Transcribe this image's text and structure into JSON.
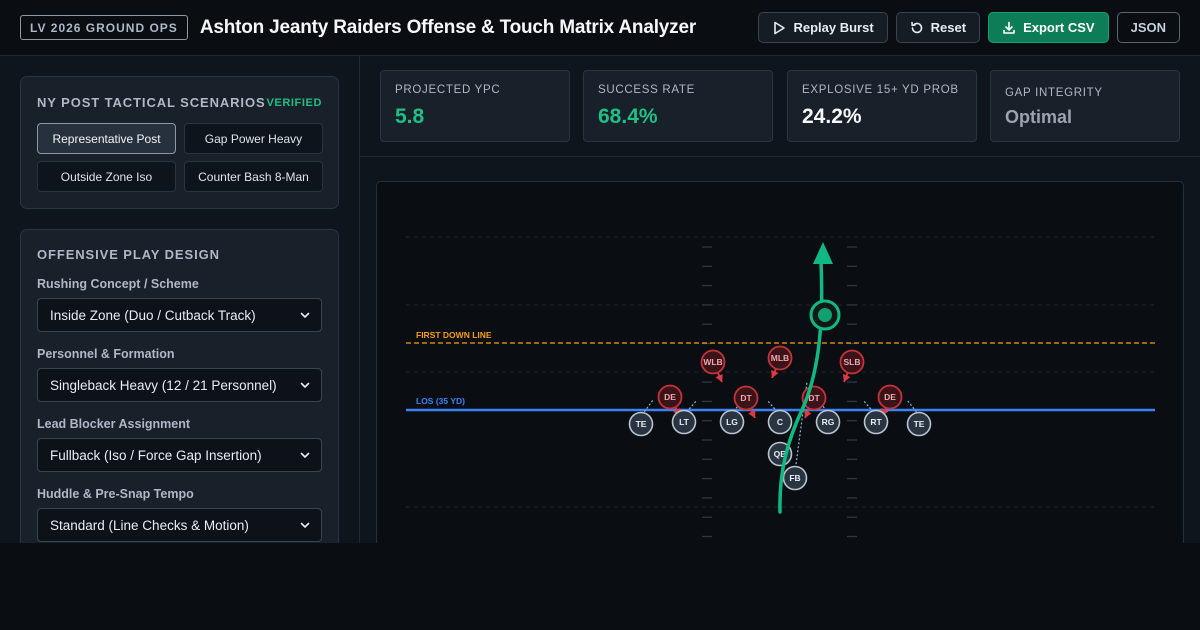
{
  "header": {
    "badge": "LV 2026 GROUND OPS",
    "title": "Ashton Jeanty Raiders Offense & Touch Matrix Analyzer",
    "actions": {
      "replay": "Replay Burst",
      "reset": "Reset",
      "export": "Export CSV",
      "json": "JSON"
    }
  },
  "scenarios": {
    "title": "NY POST TACTICAL SCENARIOS",
    "status": "VERIFIED",
    "items": [
      "Representative Post",
      "Gap Power Heavy",
      "Outside Zone Iso",
      "Counter Bash 8-Man"
    ],
    "active": "Representative Post"
  },
  "play_design": {
    "title": "OFFENSIVE PLAY DESIGN",
    "fields": [
      {
        "label": "Rushing Concept / Scheme",
        "value": "Inside Zone (Duo / Cutback Track)"
      },
      {
        "label": "Personnel & Formation",
        "value": "Singleback Heavy (12 / 21 Personnel)"
      },
      {
        "label": "Lead Blocker Assignment",
        "value": "Fullback (Iso / Force Gap Insertion)"
      },
      {
        "label": "Huddle & Pre-Snap Tempo",
        "value": "Standard (Line Checks & Motion)"
      }
    ]
  },
  "metrics": [
    {
      "label": "PROJECTED YPC",
      "value": "5.8",
      "tone": "green"
    },
    {
      "label": "SUCCESS RATE",
      "value": "68.4%",
      "tone": "green"
    },
    {
      "label": "EXPLOSIVE 15+ YD PROB",
      "value": "24.2%",
      "tone": "white"
    },
    {
      "label": "GAP INTEGRITY",
      "value": "Optimal",
      "tone": "gray"
    }
  ],
  "field": {
    "first_down_label": "FIRST DOWN LINE",
    "los_label": "LOS (35 YD)",
    "offense": [
      "TE",
      "LT",
      "LG",
      "C",
      "RG",
      "RT",
      "TE",
      "QB",
      "FB"
    ],
    "defense": [
      "DE",
      "DT",
      "DT",
      "DE",
      "WLB",
      "MLB",
      "SLB"
    ],
    "colors": {
      "offense": "#2a3440",
      "defense": "#c7323a",
      "los": "#3b82f6",
      "first_down": "#f59e0b",
      "path": "#10b981"
    }
  }
}
